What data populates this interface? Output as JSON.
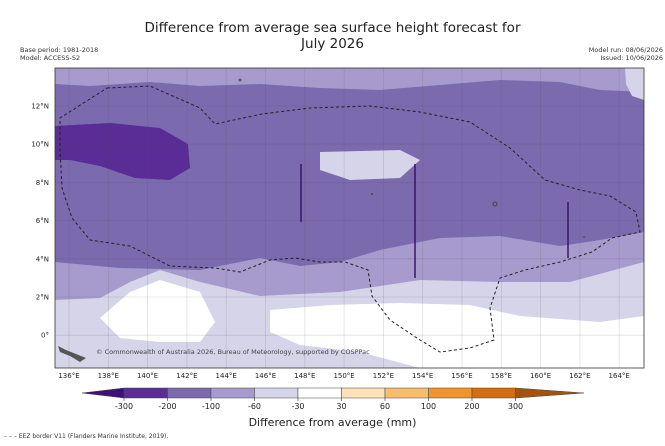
{
  "header": {
    "title_line1": "Difference from average sea surface height forecast for",
    "title_line2": "July 2026",
    "base_period": "Base period: 1981-2018",
    "model": "Model: ACCESS-S2",
    "model_run": "Model run: 08/06/2026",
    "issued": "Issued: 10/06/2026"
  },
  "map": {
    "lat_labels": [
      "12°N",
      "10°N",
      "8°N",
      "6°N",
      "4°N",
      "2°N",
      "0°"
    ],
    "lon_labels": [
      "136°E",
      "138°E",
      "140°E",
      "142°E",
      "144°E",
      "146°E",
      "148°E",
      "150°E",
      "152°E",
      "154°E",
      "156°E",
      "158°E",
      "160°E",
      "162°E",
      "164°E"
    ],
    "copyright": "© Commonwealth of Australia 2026, Bureau of Meteorology, supported by COSPPac",
    "colors": {
      "below_300": "#3f0f7a",
      "m300_m200": "#5a2c96",
      "m200_m100": "#7b6aae",
      "m100_m60": "#a69bcc",
      "m60_m30": "#d6d4e8",
      "m30_30": "#ffffff",
      "p30_60": "#fde1b8",
      "p60_100": "#f9bd6e",
      "p100_200": "#ee9430",
      "p200_300": "#cf6e12",
      "above_300": "#a5520d"
    }
  },
  "colorbar": {
    "ticks": [
      "-300",
      "-200",
      "-100",
      "-60",
      "-30",
      "30",
      "60",
      "100",
      "200",
      "300"
    ],
    "label": "Difference from average (mm)"
  },
  "footnote": "EEZ border V11 (Flanders Marine Institute, 2019)."
}
